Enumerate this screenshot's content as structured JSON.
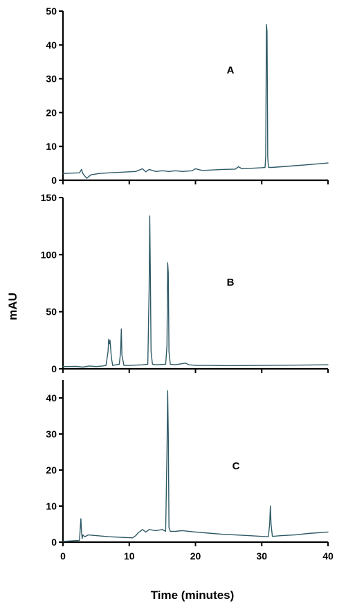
{
  "chart_data": {
    "type": "line",
    "xlabel": "Time (minutes)",
    "ylabel": "mAU",
    "xlim": [
      0,
      40
    ],
    "x_ticks": [
      "0",
      "10",
      "20",
      "30",
      "40"
    ],
    "grid": false,
    "line_color": "#2e5a66",
    "panels": [
      {
        "label": "A",
        "ylim": [
          0,
          50
        ],
        "y_ticks": [
          "0",
          "10",
          "20",
          "30",
          "40",
          "50"
        ],
        "x": [
          0,
          2.5,
          2.8,
          3.0,
          3.3,
          3.6,
          4.2,
          5.5,
          7,
          9,
          11,
          12,
          12.5,
          13,
          14,
          15,
          16,
          17,
          18,
          19.5,
          20,
          21,
          22,
          24,
          26,
          26.5,
          27,
          28,
          29,
          30,
          30.5,
          30.6,
          30.7,
          30.8,
          30.9,
          31.0,
          31.1,
          31.5,
          33,
          35,
          37,
          40
        ],
        "y": [
          2.0,
          2.2,
          3.2,
          2.0,
          1.2,
          0.6,
          1.6,
          2.0,
          2.2,
          2.4,
          2.6,
          3.4,
          2.5,
          3.2,
          2.6,
          2.8,
          2.6,
          2.8,
          2.6,
          2.8,
          3.4,
          2.9,
          3.0,
          3.2,
          3.3,
          4.0,
          3.4,
          3.5,
          3.6,
          3.7,
          3.8,
          7.0,
          46.0,
          44.0,
          7.0,
          3.9,
          3.8,
          3.8,
          4.0,
          4.3,
          4.6,
          5.1
        ]
      },
      {
        "label": "B",
        "ylim": [
          0,
          150
        ],
        "y_ticks": [
          "0",
          "50",
          "100",
          "150"
        ],
        "x": [
          0,
          2,
          3,
          4,
          5,
          6,
          6.5,
          6.8,
          6.9,
          7.0,
          7.1,
          7.3,
          7.5,
          8,
          8.5,
          8.7,
          8.8,
          8.9,
          9.2,
          10,
          11,
          12,
          12.8,
          13.0,
          13.1,
          13.2,
          13.3,
          13.5,
          14,
          15,
          15.5,
          15.7,
          15.8,
          15.9,
          16.0,
          16.2,
          17,
          18,
          18.5,
          19,
          20,
          22,
          25,
          30,
          35,
          40
        ],
        "y": [
          2.0,
          2.2,
          1.5,
          2.5,
          2.0,
          2.5,
          3.0,
          15.0,
          26.0,
          22.0,
          25.0,
          10.0,
          3.0,
          3.5,
          4.0,
          15.0,
          35.0,
          12.0,
          3.0,
          3.0,
          3.2,
          3.5,
          4.0,
          70.0,
          134.0,
          75.0,
          15.0,
          4.0,
          3.5,
          3.8,
          4.0,
          20.0,
          93.0,
          84.0,
          15.0,
          4.0,
          3.6,
          4.5,
          5.0,
          3.5,
          3.0,
          3.0,
          2.8,
          3.0,
          3.2,
          3.5
        ]
      },
      {
        "label": "C",
        "ylim": [
          0,
          45
        ],
        "y_ticks": [
          "0",
          "10",
          "20",
          "30",
          "40"
        ],
        "x": [
          0,
          2.5,
          2.7,
          2.8,
          2.9,
          3.0,
          3.3,
          3.8,
          5,
          7,
          9,
          10.5,
          11.0,
          11.3,
          12,
          12.5,
          13,
          14,
          15,
          15.5,
          15.7,
          15.8,
          15.9,
          16.0,
          16.2,
          17,
          18,
          20,
          22,
          24,
          26,
          28,
          30,
          31,
          31.2,
          31.3,
          31.4,
          31.6,
          33,
          35,
          37,
          40
        ],
        "y": [
          0.2,
          0.5,
          6.5,
          3.0,
          1.0,
          2.0,
          1.5,
          2.0,
          1.8,
          1.5,
          1.3,
          1.2,
          1.8,
          2.5,
          3.5,
          2.8,
          3.5,
          3.2,
          3.5,
          3.0,
          25.0,
          42.0,
          30.0,
          4.0,
          3.0,
          3.0,
          3.2,
          2.8,
          2.5,
          2.2,
          2.0,
          1.8,
          1.6,
          1.5,
          5.0,
          10.0,
          5.0,
          1.6,
          1.8,
          2.0,
          2.4,
          2.8
        ]
      }
    ]
  }
}
